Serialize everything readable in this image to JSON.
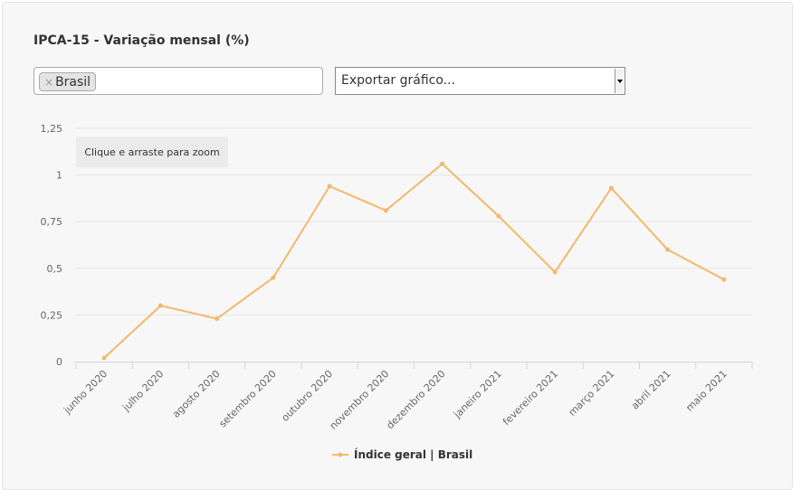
{
  "header": {
    "title": "IPCA-15 - Variação mensal (%)"
  },
  "filter": {
    "remove_symbol": "×",
    "selected_tag": "Brasil"
  },
  "export": {
    "label": "Exportar gráfico..."
  },
  "zoom_hint": "Clique e arraste para zoom",
  "colors": {
    "series": "#f4b86a",
    "grid": "#e6e6e6",
    "axis": "#ccd6eb"
  },
  "chart_data": {
    "type": "line",
    "categories": [
      "junho 2020",
      "julho 2020",
      "agosto 2020",
      "setembro 2020",
      "outubro 2020",
      "novembro 2020",
      "dezembro 2020",
      "janeiro 2021",
      "fevereiro 2021",
      "março 2021",
      "abril 2021",
      "maio 2021"
    ],
    "series": [
      {
        "name": "Índice geral | Brasil",
        "values": [
          0.02,
          0.3,
          0.23,
          0.45,
          0.94,
          0.81,
          1.06,
          0.78,
          0.48,
          0.93,
          0.6,
          0.44
        ]
      }
    ],
    "yticks": [
      "0",
      "0,25",
      "0,5",
      "0,75",
      "1",
      "1,25"
    ],
    "ylim": [
      0,
      1.25
    ],
    "grid": true,
    "legend": "bottom-center"
  }
}
